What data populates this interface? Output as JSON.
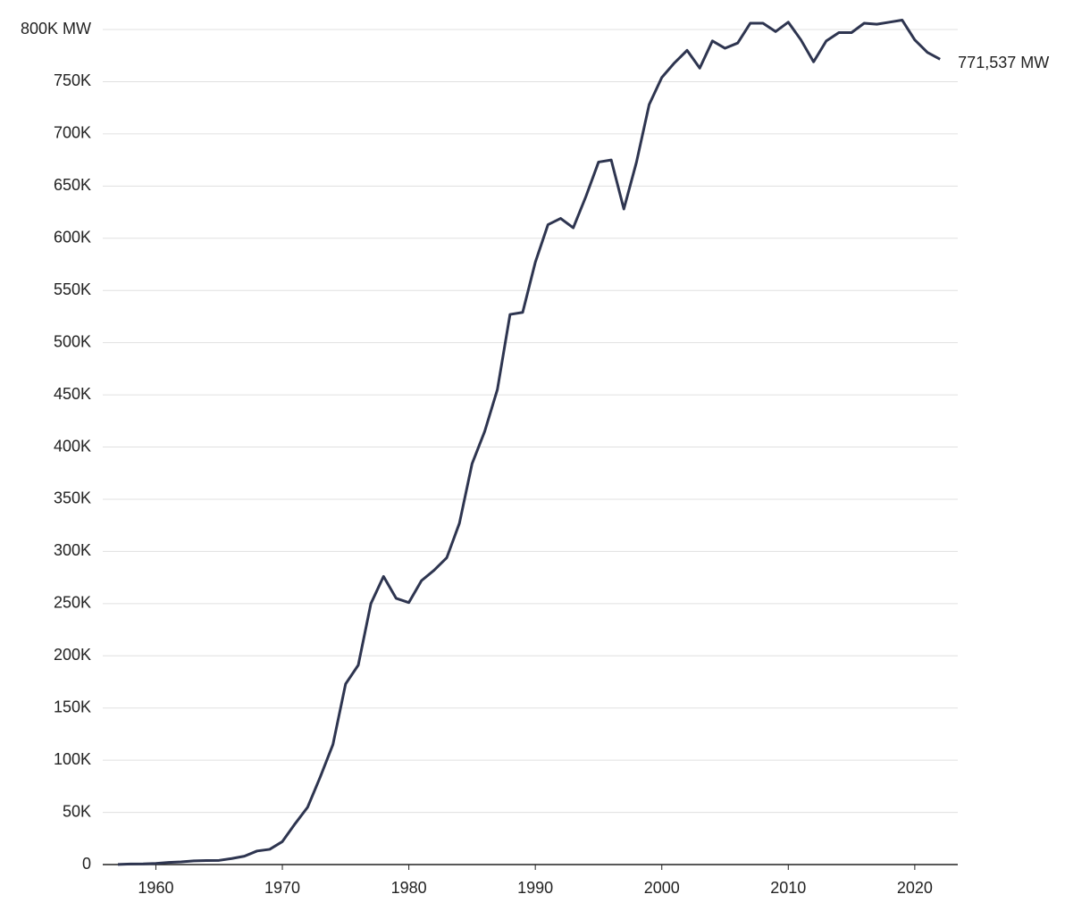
{
  "chart_data": {
    "type": "line",
    "x": [
      1957,
      1958,
      1959,
      1960,
      1961,
      1962,
      1963,
      1964,
      1965,
      1966,
      1967,
      1968,
      1969,
      1970,
      1971,
      1972,
      1973,
      1974,
      1975,
      1976,
      1977,
      1978,
      1979,
      1980,
      1981,
      1982,
      1983,
      1984,
      1985,
      1986,
      1987,
      1988,
      1989,
      1990,
      1991,
      1992,
      1993,
      1994,
      1995,
      1996,
      1997,
      1998,
      1999,
      2000,
      2001,
      2002,
      2003,
      2004,
      2005,
      2006,
      2007,
      2008,
      2009,
      2010,
      2011,
      2012,
      2013,
      2014,
      2015,
      2016,
      2017,
      2018,
      2019,
      2020,
      2021,
      2022
    ],
    "series": [
      {
        "color": "#2e3550",
        "values": [
          55,
          500,
          600,
          1100,
          2000,
          2600,
          3500,
          3900,
          4000,
          5800,
          8000,
          13000,
          14600,
          22000,
          39000,
          55000,
          84000,
          115000,
          173000,
          191000,
          250000,
          276000,
          255000,
          251000,
          272000,
          282000,
          294000,
          327000,
          384000,
          415000,
          455000,
          527000,
          529000,
          577000,
          613000,
          619000,
          610000,
          640000,
          673000,
          675000,
          628000,
          673000,
          728000,
          754000,
          768000,
          780000,
          763000,
          789000,
          782000,
          787000,
          806000,
          806000,
          798000,
          807000,
          790000,
          769000,
          789000,
          797000,
          797000,
          806000,
          805000,
          807000,
          809000,
          790000,
          778000,
          771537
        ],
        "value_labels": [
          null,
          null,
          null,
          null,
          null,
          null,
          null,
          null,
          null,
          null,
          null,
          null,
          null,
          null,
          null,
          null,
          null,
          null,
          null,
          null,
          null,
          null,
          null,
          null,
          null,
          null,
          null,
          null,
          null,
          null,
          null,
          null,
          null,
          null,
          null,
          null,
          null,
          null,
          null,
          null,
          null,
          null,
          null,
          null,
          null,
          null,
          null,
          null,
          null,
          null,
          null,
          null,
          null,
          null,
          null,
          null,
          null,
          null,
          null,
          null,
          null,
          null,
          null,
          null,
          null,
          "771,537 MW"
        ]
      }
    ],
    "xlim": [
      1955.8,
      2023.4
    ],
    "xticks": [
      1960,
      1970,
      1980,
      1990,
      2000,
      2010,
      2020
    ],
    "ylim": [
      0,
      800000
    ],
    "yticks": [
      0,
      {
        "value": 50000,
        "label": "50K"
      },
      {
        "value": 100000,
        "label": "100K"
      },
      {
        "value": 150000,
        "label": "150K"
      },
      {
        "value": 200000,
        "label": "200K"
      },
      {
        "value": 250000,
        "label": "250K"
      },
      {
        "value": 300000,
        "label": "300K"
      },
      {
        "value": 350000,
        "label": "350K"
      },
      {
        "value": 400000,
        "label": "400K"
      },
      {
        "value": 450000,
        "label": "450K"
      },
      {
        "value": 500000,
        "label": "500K"
      },
      {
        "value": 550000,
        "label": "550K"
      },
      {
        "value": 600000,
        "label": "600K"
      },
      {
        "value": 650000,
        "label": "650K"
      },
      {
        "value": 700000,
        "label": "700K"
      },
      {
        "value": 750000,
        "label": "750K"
      },
      {
        "value": 800000,
        "label": "800K MW"
      }
    ],
    "grid": true
  }
}
